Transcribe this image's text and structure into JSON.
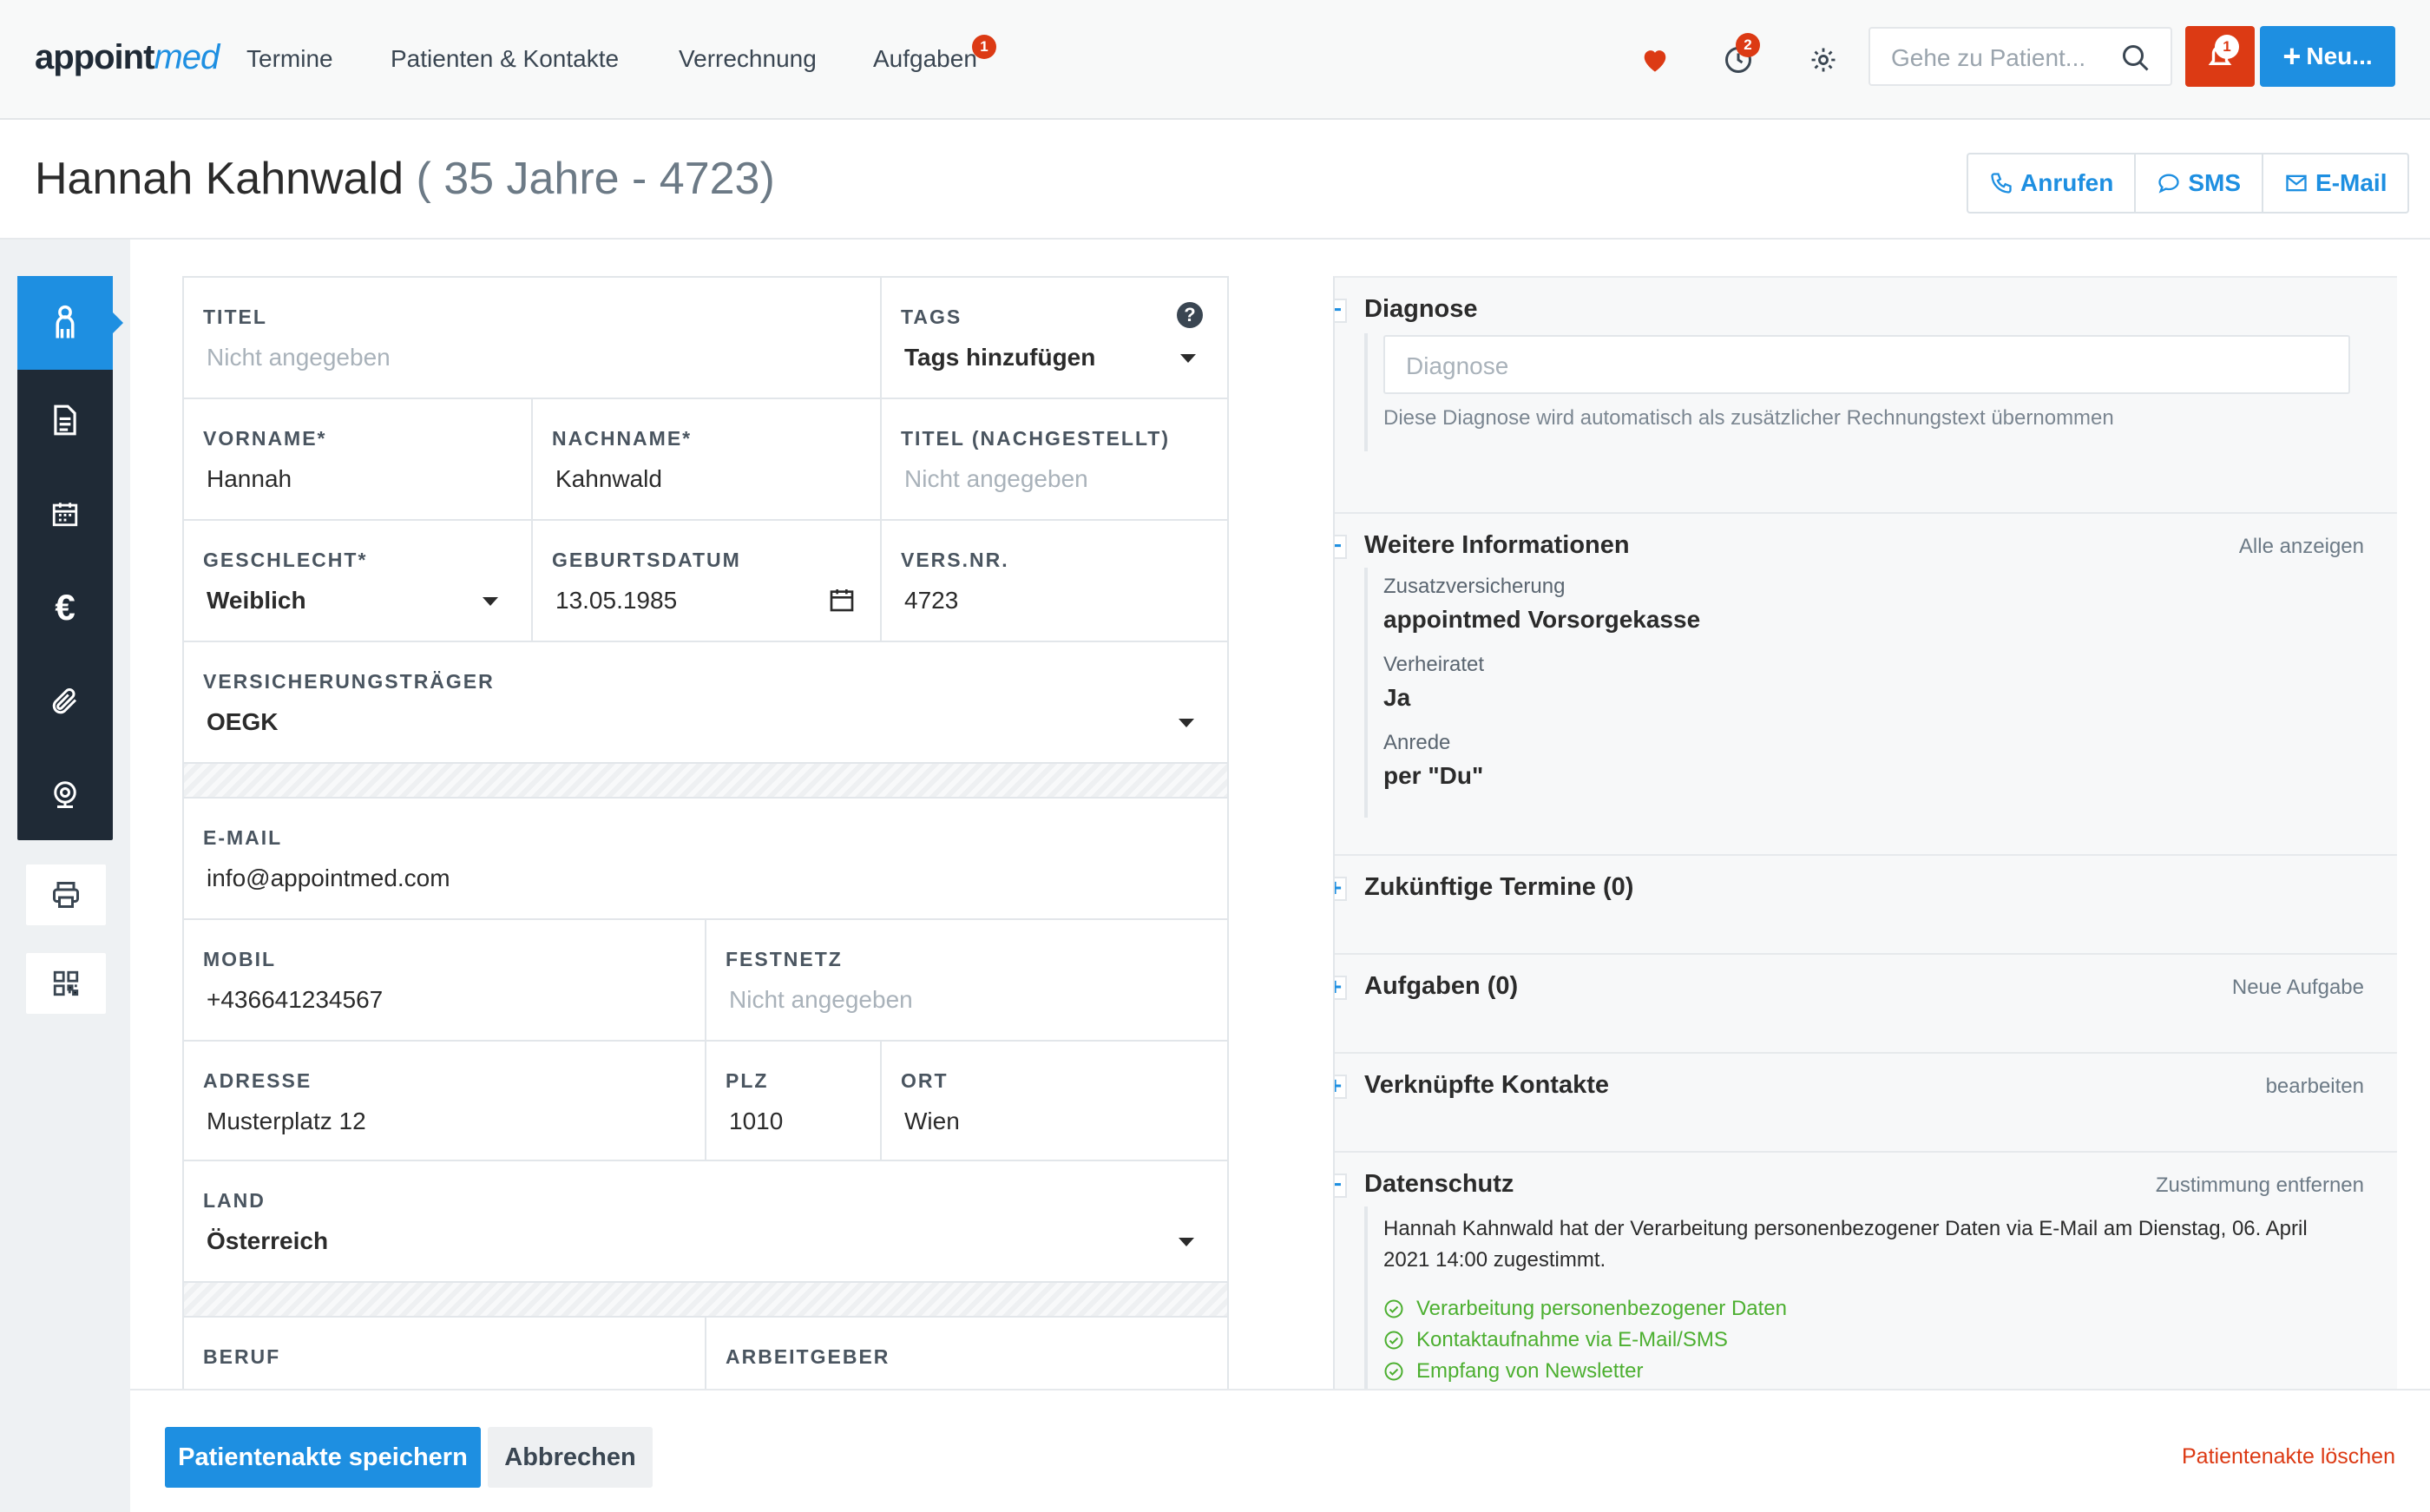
{
  "brand": {
    "logo_main": "appoint",
    "logo_accent": "med"
  },
  "nav": {
    "items": [
      {
        "label": "Termine"
      },
      {
        "label": "Patienten & Kontakte"
      },
      {
        "label": "Verrechnung"
      },
      {
        "label": "Aufgaben",
        "badge": "1"
      }
    ],
    "favorites_icon": "heart-icon",
    "updates_badge": "2",
    "settings_icon": "gear-icon",
    "search_placeholder": "Gehe zu Patient...",
    "alert_badge": "1",
    "new_label": "Neu..."
  },
  "patient": {
    "name": "Hannah Kahnwald",
    "meta": "( 35 Jahre - 4723)"
  },
  "contact_actions": {
    "call": "Anrufen",
    "sms": "SMS",
    "email": "E-Mail"
  },
  "sidebar": {
    "items": [
      {
        "icon": "person-icon",
        "active": true
      },
      {
        "icon": "document-icon"
      },
      {
        "icon": "calendar-icon"
      },
      {
        "icon": "euro-icon"
      },
      {
        "icon": "paperclip-icon"
      },
      {
        "icon": "webcam-icon"
      }
    ],
    "extra": [
      {
        "icon": "printer-icon"
      },
      {
        "icon": "qrcode-icon"
      }
    ]
  },
  "form": {
    "titel": {
      "label": "TITEL",
      "value": "Nicht angegeben"
    },
    "tags": {
      "label": "TAGS",
      "value": "Tags hinzufügen"
    },
    "vorname": {
      "label": "VORNAME*",
      "value": "Hannah"
    },
    "nachname": {
      "label": "NACHNAME*",
      "value": "Kahnwald"
    },
    "titel_nach": {
      "label": "TITEL (NACHGESTELLT)",
      "value": "Nicht angegeben"
    },
    "geschlecht": {
      "label": "GESCHLECHT*",
      "value": "Weiblich"
    },
    "geburtsdatum": {
      "label": "GEBURTSDATUM",
      "value": "13.05.1985"
    },
    "versnr": {
      "label": "VERS.NR.",
      "value": "4723"
    },
    "versicherung": {
      "label": "VERSICHERUNGSTRÄGER",
      "value": "OEGK"
    },
    "email": {
      "label": "E-MAIL",
      "value": "info@appointmed.com"
    },
    "mobil": {
      "label": "MOBIL",
      "value": "+436641234567"
    },
    "festnetz": {
      "label": "FESTNETZ",
      "value": "Nicht angegeben"
    },
    "adresse": {
      "label": "ADRESSE",
      "value": "Musterplatz 12"
    },
    "plz": {
      "label": "PLZ",
      "value": "1010"
    },
    "ort": {
      "label": "ORT",
      "value": "Wien"
    },
    "land": {
      "label": "LAND",
      "value": "Österreich"
    },
    "beruf": {
      "label": "BERUF"
    },
    "arbeitgeber": {
      "label": "ARBEITGEBER"
    }
  },
  "right": {
    "diagnose": {
      "title": "Diagnose",
      "placeholder": "Diagnose",
      "hint": "Diese Diagnose wird automatisch als zusätzlicher Rechnungstext übernommen"
    },
    "weitere": {
      "title": "Weitere Informationen",
      "link": "Alle anzeigen",
      "items": [
        {
          "label": "Zusatzversicherung",
          "value": "appointmed Vorsorgekasse"
        },
        {
          "label": "Verheiratet",
          "value": "Ja"
        },
        {
          "label": "Anrede",
          "value": "per \"Du\""
        }
      ]
    },
    "termine": {
      "title": "Zukünftige Termine (0)"
    },
    "aufgaben": {
      "title": "Aufgaben (0)",
      "link": "Neue Aufgabe"
    },
    "kontakte": {
      "title": "Verknüpfte Kontakte",
      "link": "bearbeiten"
    },
    "datenschutz": {
      "title": "Datenschutz",
      "link": "Zustimmung entfernen",
      "text": "Hannah Kahnwald hat der Verarbeitung personenbezogener Daten via E-Mail am Dienstag, 06. April 2021 14:00 zugestimmt.",
      "consents": [
        "Verarbeitung personenbezogener Daten",
        "Kontaktaufnahme via E-Mail/SMS",
        "Empfang von Newsletter"
      ]
    }
  },
  "bottom": {
    "save": "Patientenakte speichern",
    "cancel": "Abbrechen",
    "delete": "Patientenakte löschen"
  },
  "colors": {
    "accent": "#1e8fe1",
    "danger": "#dc3a14",
    "dark": "#1f2a36",
    "success": "#4caf30"
  }
}
